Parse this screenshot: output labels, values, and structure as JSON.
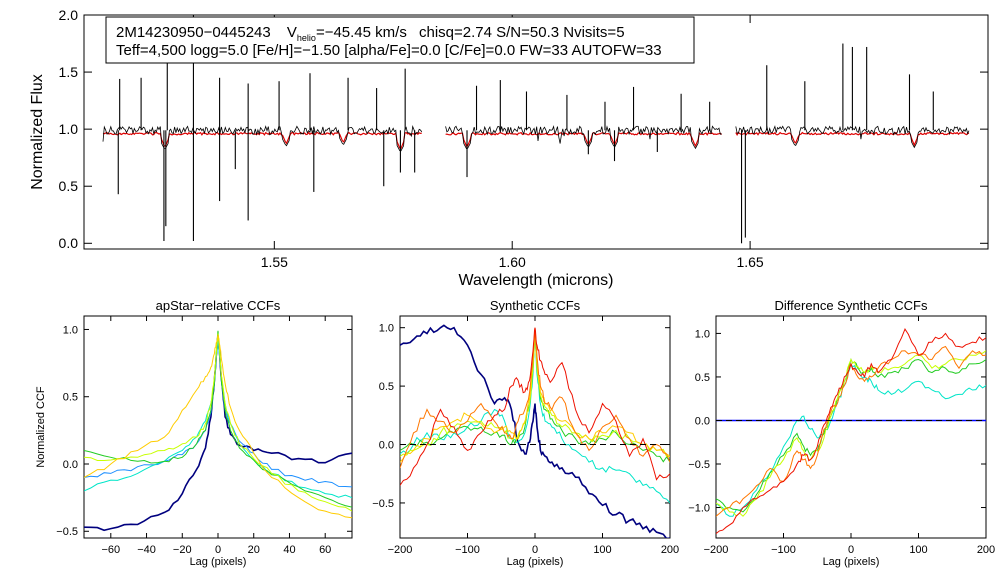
{
  "top_panel": {
    "header_id": "2M14230950−0445243",
    "header_vhelio_prefix": "V",
    "header_vhelio_sub": "helio",
    "header_vhelio_value": "=−45.45 km/s",
    "header_rest": "chisq=2.74  S/N=50.3  Nvisits=5",
    "header_line2": "Teff=4,500 logg=5.0 [Fe/H]=−1.50 [alpha/Fe]=0.0 [C/Fe]=0.0 FW=33 AUTOFW=33"
  },
  "colors": {
    "observed": "#000000",
    "model": "#dd0000",
    "ccf_series": [
      "#00007f",
      "#1e90ff",
      "#00e5c8",
      "#22cc22",
      "#c8ff00",
      "#ffcc00",
      "#ff7700",
      "#ee1100"
    ],
    "dashed": "#000000",
    "zero_line": "#0000ff"
  },
  "chart_data": [
    {
      "type": "line",
      "title": "",
      "xlabel": "Wavelength (microns)",
      "ylabel": "Normalized Flux",
      "xlim": [
        1.51,
        1.7
      ],
      "ylim": [
        -0.05,
        2.0
      ],
      "xticks": [
        1.55,
        1.6,
        1.65
      ],
      "xtick_labels": [
        "1.55",
        "1.60",
        "1.65"
      ],
      "yticks": [
        0.0,
        0.5,
        1.0,
        1.5,
        2.0
      ],
      "ytick_labels": [
        "0.0",
        "0.5",
        "1.0",
        "1.5",
        "2.0"
      ],
      "chip_ranges": [
        [
          1.514,
          1.581
        ],
        [
          1.586,
          1.644
        ],
        [
          1.647,
          1.696
        ]
      ],
      "continuum": 0.99,
      "model_level": 0.96,
      "emission_lines_x": [
        1.5175,
        1.522,
        1.5275,
        1.533,
        1.5385,
        1.5445,
        1.551,
        1.5575,
        1.5655,
        1.5715,
        1.5775,
        1.5925,
        1.5975,
        1.603,
        1.6115,
        1.6195,
        1.6255,
        1.6355,
        1.6415,
        1.6535,
        1.6615,
        1.6695,
        1.6715,
        1.6745,
        1.6835,
        1.6885
      ],
      "emission_lines_y": [
        1.44,
        1.45,
        1.73,
        2.0,
        1.45,
        1.4,
        1.42,
        1.49,
        1.45,
        1.36,
        1.53,
        1.38,
        1.43,
        1.33,
        1.3,
        1.24,
        1.37,
        1.31,
        1.24,
        1.56,
        1.42,
        1.75,
        1.72,
        1.72,
        1.48,
        1.33
      ],
      "absorption_lines_x": [
        1.5172,
        1.5268,
        1.5272,
        1.533,
        1.5385,
        1.5418,
        1.5445,
        1.5583,
        1.573,
        1.5765,
        1.5795,
        1.5905,
        1.616,
        1.6215,
        1.6305,
        1.6482,
        1.649
      ],
      "absorption_lines_y": [
        0.43,
        0.02,
        0.15,
        0.02,
        0.37,
        0.65,
        0.2,
        0.45,
        0.5,
        0.62,
        0.62,
        0.58,
        0.78,
        0.72,
        0.8,
        0.0,
        0.05
      ],
      "model_dips_x": [
        1.527,
        1.5525,
        1.5645,
        1.5765,
        1.5905,
        1.616,
        1.6215,
        1.6385,
        1.6595,
        1.6845
      ],
      "model_dips_y": [
        0.84,
        0.87,
        0.88,
        0.82,
        0.84,
        0.86,
        0.86,
        0.85,
        0.87,
        0.86
      ]
    },
    {
      "type": "line",
      "title": "apStar−relative CCFs",
      "xlabel": "Lag (pixels)",
      "ylabel": "Normalized CCF",
      "xlim": [
        -75,
        75
      ],
      "ylim": [
        -0.55,
        1.1
      ],
      "xticks": [
        -60,
        -40,
        -20,
        0,
        20,
        40,
        60
      ],
      "xtick_labels": [
        "−60",
        "−40",
        "−20",
        "0",
        "20",
        "40",
        "60"
      ],
      "yticks": [
        -0.5,
        0.0,
        0.5,
        1.0
      ],
      "ytick_labels": [
        "−0.5",
        "0.0",
        "0.5",
        "1.0"
      ],
      "x": [
        -75,
        -60,
        -45,
        -30,
        -20,
        -12,
        -7,
        -4,
        -2,
        -1,
        0,
        1,
        2,
        4,
        7,
        12,
        20,
        30,
        45,
        60,
        75
      ],
      "series": [
        {
          "name": "navy",
          "values": [
            -0.47,
            -0.48,
            -0.45,
            -0.36,
            -0.22,
            -0.04,
            0.12,
            0.35,
            0.62,
            0.8,
            0.95,
            0.8,
            0.62,
            0.35,
            0.22,
            0.14,
            0.1,
            0.08,
            0.04,
            0.01,
            0.08
          ]
        },
        {
          "name": "blue",
          "values": [
            -0.1,
            -0.07,
            -0.02,
            0.02,
            0.07,
            0.15,
            0.25,
            0.38,
            0.6,
            0.78,
            0.93,
            0.78,
            0.6,
            0.4,
            0.3,
            0.17,
            0.08,
            -0.04,
            -0.1,
            -0.13,
            -0.17
          ]
        },
        {
          "name": "cyan",
          "values": [
            -0.2,
            -0.12,
            -0.07,
            0.02,
            0.1,
            0.2,
            0.32,
            0.45,
            0.62,
            0.8,
            0.95,
            0.8,
            0.63,
            0.45,
            0.3,
            0.15,
            0.03,
            -0.07,
            -0.17,
            -0.22,
            -0.25
          ]
        },
        {
          "name": "green",
          "values": [
            0.1,
            0.05,
            0.02,
            0.02,
            0.05,
            0.15,
            0.25,
            0.4,
            0.6,
            0.82,
            0.99,
            0.82,
            0.6,
            0.4,
            0.25,
            0.12,
            0.03,
            -0.08,
            -0.17,
            -0.25,
            -0.32
          ]
        },
        {
          "name": "lime",
          "values": [
            0.05,
            0.03,
            0.05,
            0.1,
            0.15,
            0.2,
            0.3,
            0.45,
            0.65,
            0.82,
            0.97,
            0.82,
            0.65,
            0.45,
            0.3,
            0.15,
            0.04,
            -0.07,
            -0.2,
            -0.28,
            -0.35
          ]
        },
        {
          "name": "yellow",
          "values": [
            -0.1,
            0.0,
            0.1,
            0.2,
            0.4,
            0.55,
            0.65,
            0.72,
            0.82,
            0.9,
            0.96,
            0.88,
            0.77,
            0.6,
            0.42,
            0.25,
            0.08,
            -0.1,
            -0.25,
            -0.35,
            -0.4
          ]
        }
      ]
    },
    {
      "type": "line",
      "title": "Synthetic CCFs",
      "xlabel": "Lag (pixels)",
      "ylabel": "",
      "xlim": [
        -200,
        200
      ],
      "ylim": [
        -0.8,
        1.1
      ],
      "xticks": [
        -200,
        -100,
        0,
        100,
        200
      ],
      "xtick_labels": [
        "−200",
        "−100",
        "0",
        "100",
        "200"
      ],
      "yticks": [
        -0.5,
        0.0,
        0.5,
        1.0
      ],
      "ytick_labels": [
        "−0.5",
        "0.0",
        "0.5",
        "1.0"
      ],
      "dashed_zero": true,
      "x": [
        -200,
        -180,
        -160,
        -140,
        -120,
        -100,
        -80,
        -60,
        -45,
        -35,
        -25,
        -15,
        -8,
        -3,
        0,
        3,
        8,
        15,
        25,
        40,
        60,
        80,
        100,
        120,
        140,
        160,
        180,
        200
      ],
      "series": [
        {
          "name": "navy",
          "values": [
            0.85,
            0.9,
            0.95,
            1.0,
            1.0,
            0.85,
            0.6,
            0.35,
            0.4,
            0.3,
            0.02,
            -0.08,
            0.02,
            0.2,
            0.35,
            0.15,
            -0.05,
            -0.1,
            -0.15,
            -0.2,
            -0.28,
            -0.42,
            -0.52,
            -0.6,
            -0.65,
            -0.72,
            -0.75,
            -0.8
          ]
        },
        {
          "name": "cyan",
          "values": [
            -0.08,
            0.0,
            0.1,
            0.05,
            0.1,
            0.15,
            0.2,
            0.3,
            0.2,
            0.05,
            0.02,
            0.1,
            0.3,
            0.6,
            0.95,
            0.6,
            0.35,
            0.2,
            0.15,
            0.05,
            -0.05,
            -0.15,
            -0.2,
            -0.22,
            -0.25,
            -0.35,
            -0.4,
            -0.5
          ]
        },
        {
          "name": "green",
          "values": [
            -0.05,
            0.0,
            0.02,
            0.05,
            0.1,
            0.15,
            0.15,
            0.1,
            0.08,
            0.0,
            0.05,
            0.15,
            0.35,
            0.65,
            0.98,
            0.65,
            0.4,
            0.3,
            0.22,
            0.12,
            0.05,
            0.0,
            0.05,
            0.1,
            0.0,
            -0.05,
            -0.1,
            -0.15
          ]
        },
        {
          "name": "lime",
          "values": [
            -0.1,
            -0.05,
            0.0,
            0.1,
            0.15,
            0.2,
            0.2,
            0.15,
            0.1,
            0.05,
            0.08,
            0.18,
            0.35,
            0.65,
            0.98,
            0.65,
            0.42,
            0.32,
            0.25,
            0.15,
            0.1,
            0.05,
            0.08,
            0.12,
            0.05,
            0.0,
            -0.05,
            -0.1
          ]
        },
        {
          "name": "yellow",
          "values": [
            -0.15,
            -0.05,
            0.05,
            0.15,
            0.2,
            0.25,
            0.18,
            0.1,
            0.15,
            0.1,
            0.05,
            0.2,
            0.4,
            0.7,
            0.98,
            0.7,
            0.45,
            0.35,
            0.3,
            0.2,
            0.1,
            0.05,
            0.1,
            0.15,
            0.1,
            0.0,
            -0.05,
            -0.1
          ]
        },
        {
          "name": "orange",
          "values": [
            -0.2,
            0.1,
            0.3,
            0.2,
            0.1,
            0.2,
            0.35,
            0.2,
            0.1,
            0.05,
            0.2,
            0.3,
            0.45,
            0.75,
            1.0,
            0.75,
            0.5,
            0.35,
            0.3,
            0.4,
            0.1,
            -0.05,
            0.15,
            0.25,
            0.05,
            -0.1,
            0.0,
            -0.15
          ]
        },
        {
          "name": "red",
          "values": [
            -0.35,
            -0.2,
            0.0,
            0.3,
            0.15,
            -0.05,
            0.1,
            0.25,
            0.3,
            0.5,
            0.55,
            0.45,
            0.55,
            0.8,
            1.0,
            0.85,
            0.72,
            0.6,
            0.55,
            0.7,
            0.3,
            0.1,
            0.35,
            0.2,
            -0.1,
            0.05,
            -0.3,
            -0.25
          ]
        }
      ]
    },
    {
      "type": "line",
      "title": "Difference Synthetic CCFs",
      "xlabel": "Lag (pixels)",
      "ylabel": "",
      "xlim": [
        -200,
        200
      ],
      "ylim": [
        -1.35,
        1.2
      ],
      "xticks": [
        -200,
        -100,
        0,
        100,
        200
      ],
      "xtick_labels": [
        "−200",
        "−100",
        "0",
        "100",
        "200"
      ],
      "yticks": [
        -1.0,
        -0.5,
        0.0,
        0.5,
        1.0
      ],
      "ytick_labels": [
        "−1.0",
        "−0.5",
        "0.0",
        "0.5",
        "1.0"
      ],
      "dashed_zero": true,
      "zero_line_series": true,
      "x": [
        -200,
        -180,
        -160,
        -140,
        -120,
        -100,
        -80,
        -70,
        -60,
        -50,
        -40,
        -30,
        -20,
        -10,
        0,
        10,
        20,
        30,
        40,
        60,
        80,
        100,
        120,
        140,
        160,
        180,
        200
      ],
      "series": [
        {
          "name": "navy",
          "values": [
            0,
            0,
            0,
            0,
            0,
            0,
            0,
            0,
            0,
            0,
            0,
            0,
            0,
            0,
            0,
            0,
            0,
            0,
            0,
            0,
            0,
            0,
            0,
            0,
            0,
            0,
            0
          ]
        },
        {
          "name": "cyan",
          "values": [
            -0.95,
            -1.1,
            -1.0,
            -0.8,
            -0.6,
            -0.3,
            0.0,
            0.05,
            -0.1,
            -0.2,
            -0.15,
            0.0,
            0.2,
            0.4,
            0.65,
            0.55,
            0.5,
            0.45,
            0.35,
            0.3,
            0.35,
            0.45,
            0.35,
            0.25,
            0.3,
            0.35,
            0.4
          ]
        },
        {
          "name": "green",
          "values": [
            -0.9,
            -1.0,
            -1.05,
            -0.85,
            -0.6,
            -0.4,
            -0.15,
            -0.3,
            -0.4,
            -0.35,
            -0.15,
            0.05,
            0.25,
            0.45,
            0.7,
            0.6,
            0.55,
            0.6,
            0.5,
            0.55,
            0.6,
            0.7,
            0.55,
            0.6,
            0.55,
            0.65,
            0.7
          ]
        },
        {
          "name": "lime",
          "values": [
            -0.95,
            -1.05,
            -1.1,
            -0.9,
            -0.65,
            -0.45,
            -0.2,
            -0.35,
            -0.45,
            -0.35,
            -0.2,
            0.05,
            0.25,
            0.45,
            0.7,
            0.62,
            0.55,
            0.62,
            0.55,
            0.6,
            0.65,
            0.75,
            0.6,
            0.65,
            0.7,
            0.75,
            0.8
          ]
        },
        {
          "name": "orange",
          "values": [
            -1.1,
            -1.0,
            -0.9,
            -0.75,
            -0.55,
            -0.7,
            -0.35,
            -0.45,
            -0.55,
            -0.4,
            -0.1,
            0.1,
            0.2,
            0.4,
            0.65,
            0.5,
            0.45,
            0.5,
            0.6,
            0.7,
            0.8,
            0.75,
            0.7,
            0.85,
            0.6,
            0.8,
            0.75
          ]
        },
        {
          "name": "red",
          "values": [
            -1.3,
            -1.2,
            -1.0,
            -0.9,
            -0.8,
            -0.7,
            -0.5,
            -0.4,
            -0.45,
            -0.3,
            -0.05,
            0.15,
            0.3,
            0.5,
            0.65,
            0.55,
            0.5,
            0.65,
            0.55,
            0.7,
            1.05,
            0.75,
            0.9,
            1.0,
            0.85,
            0.9,
            0.95
          ]
        }
      ]
    }
  ]
}
